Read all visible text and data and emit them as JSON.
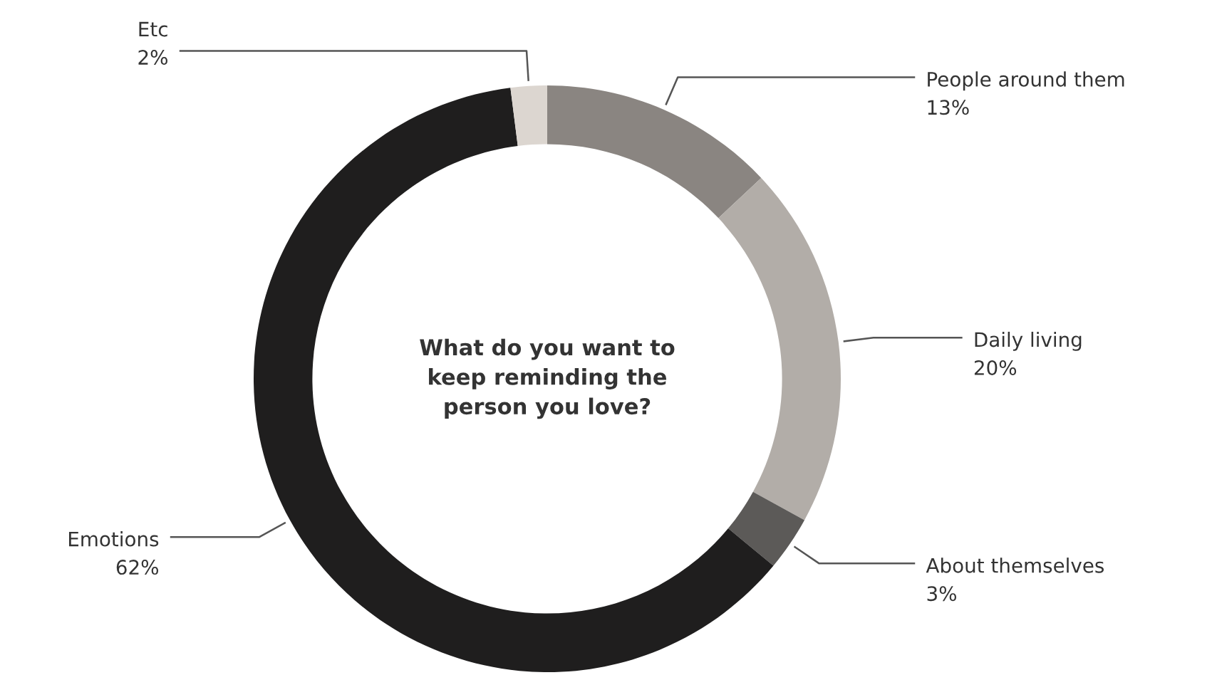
{
  "chart_data": {
    "type": "donut",
    "title": "What do you want to\nkeep reminding the\nperson you love?",
    "categories": [
      "People around them",
      "Daily living",
      "About themselves",
      "Emotions",
      "Etc"
    ],
    "values": [
      13,
      20,
      3,
      62,
      2
    ],
    "value_labels": [
      "13%",
      "20%",
      "3%",
      "62%",
      "2%"
    ],
    "colors": [
      "#8a8581",
      "#b2ada8",
      "#5c5a58",
      "#1f1e1e",
      "#dcd6d0"
    ],
    "legend": false
  }
}
